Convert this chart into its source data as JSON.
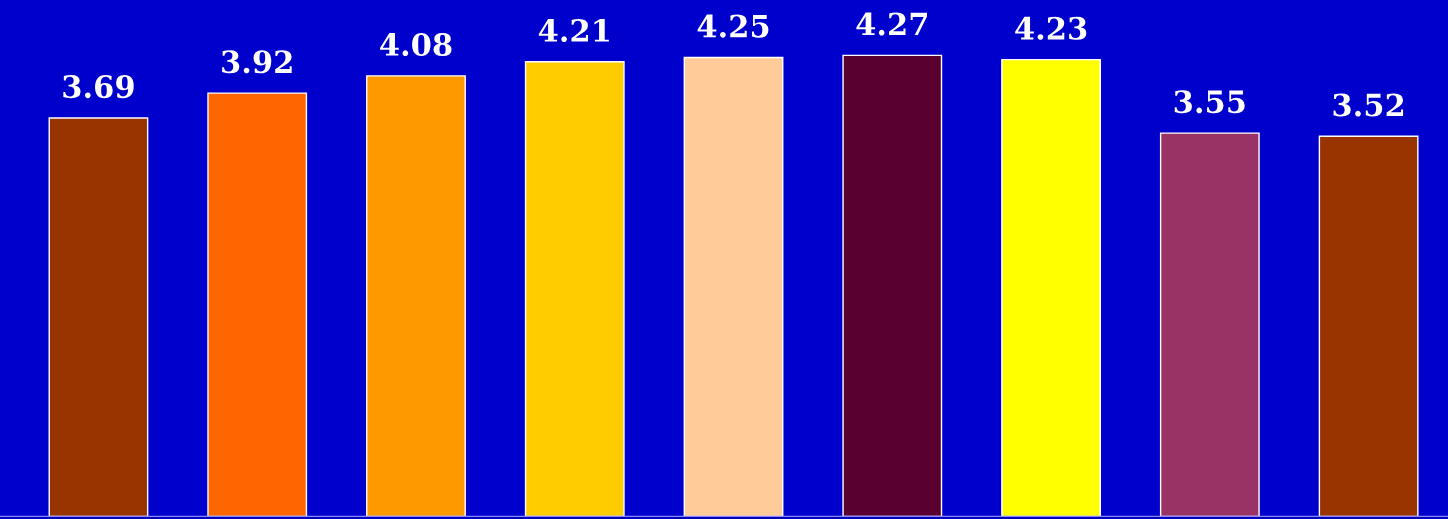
{
  "chart_data": {
    "type": "bar",
    "categories": [
      null,
      null,
      null,
      null,
      null,
      null,
      null,
      null,
      null
    ],
    "values": [
      3.69,
      3.92,
      4.08,
      4.21,
      4.25,
      4.27,
      4.23,
      3.55,
      3.52
    ],
    "colors": [
      "#993300",
      "#ff6600",
      "#ff9900",
      "#ffcc00",
      "#ffcc99",
      "#5a0030",
      "#ffff00",
      "#993366",
      "#993300"
    ],
    "data_labels": true,
    "grid": false
  }
}
